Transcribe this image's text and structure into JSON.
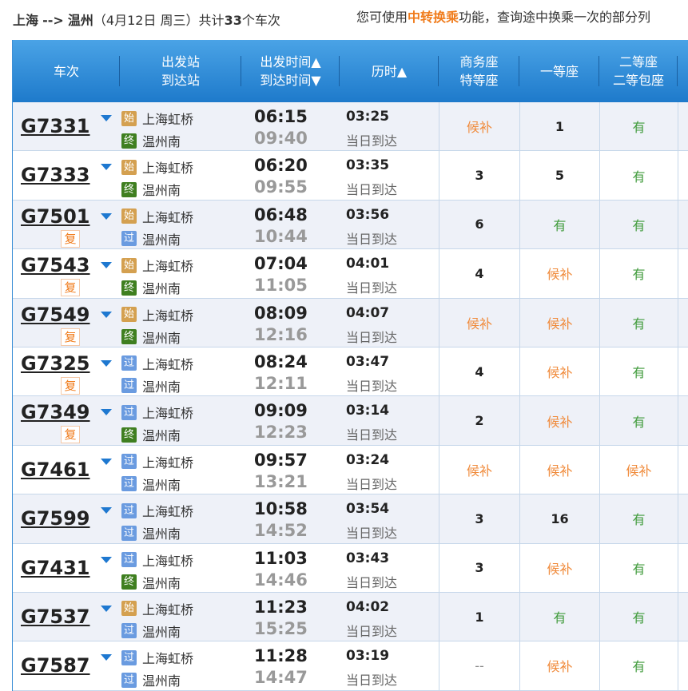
{
  "summary": {
    "from": "上海",
    "arrow": "-->",
    "to": "温州",
    "date": "（4月12日  周三）",
    "count_prefix": "共计",
    "count": "33",
    "count_suffix": "个车次"
  },
  "hint": {
    "pre": "您可使用",
    "link": "中转换乘",
    "post": "功能，查询途中换乘一次的部分列"
  },
  "colors": {
    "header": "#2a8ad8",
    "wait": "#f08a3a",
    "available": "#3f9a3a",
    "start": "#d4a050",
    "end": "#3f7f20",
    "pass": "#6a9be0"
  },
  "headers": {
    "train": "车次",
    "station1": "出发站",
    "station2": "到达站",
    "time1": "出发时间▲",
    "time2": "到达时间▼",
    "duration": "历时▲",
    "biz1": "商务座",
    "biz2": "特等座",
    "first": "一等座",
    "second1": "二等座",
    "second2": "二等包座"
  },
  "badges": {
    "start": "始",
    "end": "终",
    "pass": "过",
    "fu": "复"
  },
  "rows": [
    {
      "train": "G7331",
      "fu": false,
      "from_type": "start",
      "from": "上海虹桥",
      "to_type": "end",
      "to": "温州南",
      "dep": "06:15",
      "arr": "09:40",
      "dur": "03:25",
      "note": "当日到达",
      "biz": "候补",
      "first": "1",
      "second": "有"
    },
    {
      "train": "G7333",
      "fu": false,
      "from_type": "start",
      "from": "上海虹桥",
      "to_type": "end",
      "to": "温州南",
      "dep": "06:20",
      "arr": "09:55",
      "dur": "03:35",
      "note": "当日到达",
      "biz": "3",
      "first": "5",
      "second": "有"
    },
    {
      "train": "G7501",
      "fu": true,
      "from_type": "start",
      "from": "上海虹桥",
      "to_type": "pass",
      "to": "温州南",
      "dep": "06:48",
      "arr": "10:44",
      "dur": "03:56",
      "note": "当日到达",
      "biz": "6",
      "first": "有",
      "second": "有"
    },
    {
      "train": "G7543",
      "fu": true,
      "from_type": "start",
      "from": "上海虹桥",
      "to_type": "end",
      "to": "温州南",
      "dep": "07:04",
      "arr": "11:05",
      "dur": "04:01",
      "note": "当日到达",
      "biz": "4",
      "first": "候补",
      "second": "有"
    },
    {
      "train": "G7549",
      "fu": true,
      "from_type": "start",
      "from": "上海虹桥",
      "to_type": "end",
      "to": "温州南",
      "dep": "08:09",
      "arr": "12:16",
      "dur": "04:07",
      "note": "当日到达",
      "biz": "候补",
      "first": "候补",
      "second": "有"
    },
    {
      "train": "G7325",
      "fu": true,
      "from_type": "pass",
      "from": "上海虹桥",
      "to_type": "pass",
      "to": "温州南",
      "dep": "08:24",
      "arr": "12:11",
      "dur": "03:47",
      "note": "当日到达",
      "biz": "4",
      "first": "候补",
      "second": "有"
    },
    {
      "train": "G7349",
      "fu": true,
      "from_type": "pass",
      "from": "上海虹桥",
      "to_type": "end",
      "to": "温州南",
      "dep": "09:09",
      "arr": "12:23",
      "dur": "03:14",
      "note": "当日到达",
      "biz": "2",
      "first": "候补",
      "second": "有"
    },
    {
      "train": "G7461",
      "fu": false,
      "from_type": "pass",
      "from": "上海虹桥",
      "to_type": "pass",
      "to": "温州南",
      "dep": "09:57",
      "arr": "13:21",
      "dur": "03:24",
      "note": "当日到达",
      "biz": "候补",
      "first": "候补",
      "second": "候补"
    },
    {
      "train": "G7599",
      "fu": false,
      "from_type": "pass",
      "from": "上海虹桥",
      "to_type": "pass",
      "to": "温州南",
      "dep": "10:58",
      "arr": "14:52",
      "dur": "03:54",
      "note": "当日到达",
      "biz": "3",
      "first": "16",
      "second": "有"
    },
    {
      "train": "G7431",
      "fu": false,
      "from_type": "pass",
      "from": "上海虹桥",
      "to_type": "end",
      "to": "温州南",
      "dep": "11:03",
      "arr": "14:46",
      "dur": "03:43",
      "note": "当日到达",
      "biz": "3",
      "first": "候补",
      "second": "有"
    },
    {
      "train": "G7537",
      "fu": false,
      "from_type": "start",
      "from": "上海虹桥",
      "to_type": "pass",
      "to": "温州南",
      "dep": "11:23",
      "arr": "15:25",
      "dur": "04:02",
      "note": "当日到达",
      "biz": "1",
      "first": "有",
      "second": "有"
    },
    {
      "train": "G7587",
      "fu": false,
      "from_type": "pass",
      "from": "上海虹桥",
      "to_type": "pass",
      "to": "温州南",
      "dep": "11:28",
      "arr": "14:47",
      "dur": "03:19",
      "note": "当日到达",
      "biz": "--",
      "first": "候补",
      "second": "有"
    }
  ]
}
